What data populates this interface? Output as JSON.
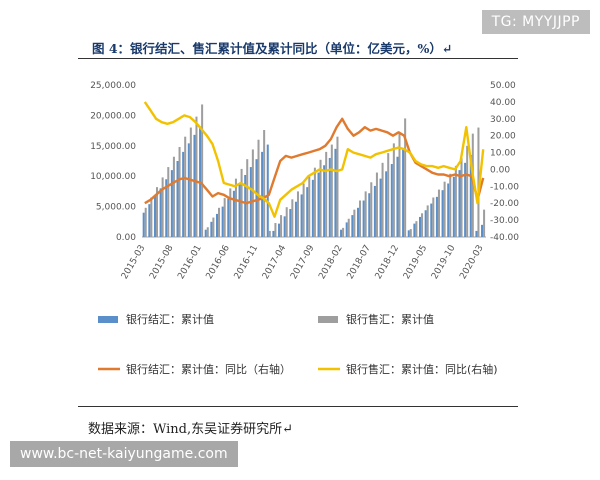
{
  "watermark_top": "TG: MYYJJPP",
  "watermark_bottom": "www.bc-net-kaiyungame.com",
  "source": "数据来源：Wind,东吴证券研究所↵",
  "chart_data": {
    "type": "bar",
    "title": "图 4：银行结汇、售汇累计值及累计同比（单位：亿美元，%）↵",
    "left_axis": {
      "ticks": [
        "0.00",
        "5,000.00",
        "10,000.00",
        "15,000.00",
        "20,000.00",
        "25,000.00"
      ],
      "min": 0,
      "max": 25000
    },
    "right_axis": {
      "ticks": [
        "-40.00",
        "-30.00",
        "-20.00",
        "-10.00",
        "0.00",
        "10.00",
        "20.00",
        "30.00",
        "40.00",
        "50.00"
      ],
      "min": -40,
      "max": 50
    },
    "x_tick_labels": [
      "2015-03",
      "2015-08",
      "2016-01",
      "2016-06",
      "2016-11",
      "2017-04",
      "2017-09",
      "2018-02",
      "2018-07",
      "2018-12",
      "2019-05",
      "2019-10",
      "2020-03"
    ],
    "x_tick_indices": [
      0,
      5,
      10,
      15,
      20,
      25,
      30,
      35,
      40,
      45,
      50,
      55,
      60
    ],
    "legend": [
      {
        "label": "银行结汇：累计值",
        "kind": "bar",
        "color": "#5b8fc9"
      },
      {
        "label": "银行售汇：累计值",
        "kind": "bar",
        "color": "#9e9e9e"
      },
      {
        "label": "银行结汇：累计值：同比（右轴）",
        "kind": "line",
        "color": "#e07a2e"
      },
      {
        "label": "银行售汇：累计值：同比(右轴)",
        "kind": "line",
        "color": "#f2c200"
      }
    ],
    "series": [
      {
        "name": "银行结汇：累计值",
        "axis": "left",
        "kind": "bar",
        "color": "#5b8fc9",
        "values": [
          4000,
          5400,
          6800,
          8000,
          9500,
          11000,
          12500,
          14000,
          15400,
          16800,
          18200,
          1200,
          2500,
          3800,
          5000,
          6300,
          7600,
          8900,
          10200,
          11500,
          12800,
          14000,
          15200,
          1000,
          2200,
          3400,
          4600,
          5800,
          7000,
          8200,
          9400,
          10600,
          11800,
          13000,
          14500,
          1200,
          2400,
          3600,
          4800,
          6000,
          7200,
          8400,
          9600,
          10800,
          12000,
          13200,
          14500,
          1100,
          2200,
          3300,
          4400,
          5500,
          6600,
          7700,
          8800,
          9900,
          11000,
          12200,
          13500,
          1000,
          2000
        ]
      },
      {
        "name": "银行售汇：累计值",
        "axis": "left",
        "kind": "bar",
        "color": "#9e9e9e",
        "values": [
          4800,
          6500,
          8200,
          9800,
          11500,
          13200,
          14800,
          16500,
          18000,
          19800,
          21800,
          1600,
          3200,
          4800,
          6400,
          8000,
          9600,
          11200,
          12800,
          14400,
          16000,
          17600,
          1000,
          2300,
          3600,
          4900,
          6200,
          7500,
          8800,
          10100,
          11400,
          12700,
          14000,
          15200,
          16500,
          1500,
          3000,
          4500,
          6000,
          7500,
          9000,
          10600,
          12200,
          13800,
          15400,
          17000,
          19500,
          1300,
          2600,
          3900,
          5200,
          6500,
          7800,
          9100,
          10400,
          11700,
          13000,
          15000,
          17000,
          18000,
          4500
        ]
      },
      {
        "name": "银行结汇：累计值：同比（右轴）",
        "axis": "right",
        "kind": "line",
        "color": "#e07a2e",
        "values": [
          -20,
          -18,
          -15,
          -12,
          -10,
          -8,
          -6,
          -5,
          -6,
          -7,
          -8,
          -12,
          -16,
          -14,
          -15,
          -17,
          -18,
          -19,
          -20,
          -19,
          -18,
          -17,
          -15,
          -5,
          5,
          8,
          7,
          8,
          9,
          10,
          11,
          12,
          14,
          18,
          25,
          30,
          24,
          20,
          22,
          25,
          23,
          24,
          23,
          22,
          20,
          22,
          20,
          10,
          4,
          2,
          0,
          -2,
          -3,
          -3,
          -4,
          -3,
          -4,
          -3,
          -4,
          -18,
          -5
        ]
      },
      {
        "name": "银行售汇：累计值：同比(右轴)",
        "axis": "right",
        "kind": "line",
        "color": "#f2c200",
        "values": [
          40,
          35,
          30,
          28,
          27,
          28,
          30,
          32,
          31,
          28,
          24,
          20,
          15,
          5,
          -8,
          -9,
          -10,
          -8,
          -10,
          -12,
          -15,
          -17,
          -20,
          -28,
          -18,
          -15,
          -12,
          -10,
          -8,
          -4,
          -2,
          0,
          -1,
          0,
          -1,
          0,
          12,
          10,
          9,
          8,
          7,
          9,
          10,
          11,
          12,
          13,
          12,
          10,
          5,
          3,
          2,
          2,
          1,
          2,
          1,
          0,
          5,
          25,
          0,
          -20,
          12
        ]
      }
    ]
  }
}
